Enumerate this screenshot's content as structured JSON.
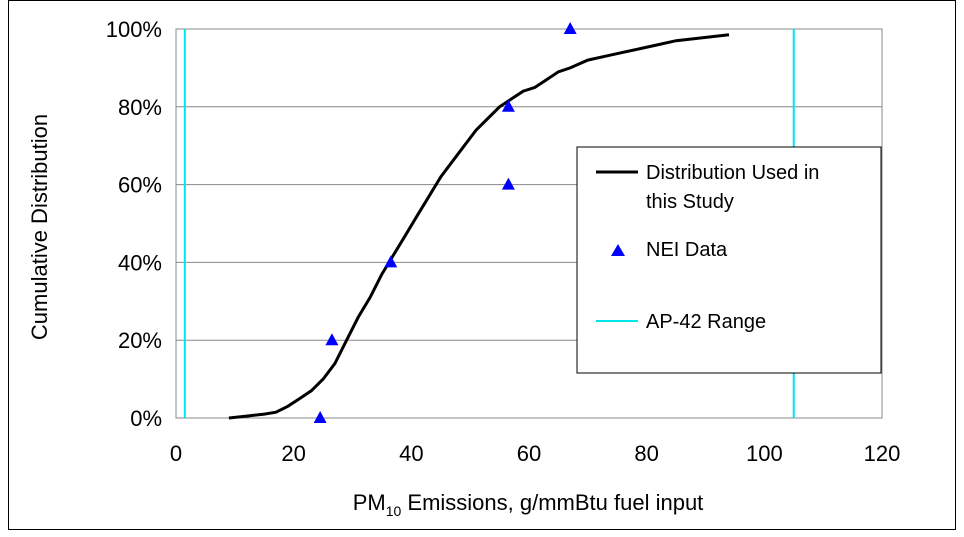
{
  "chart_data": {
    "type": "line",
    "xlabel_main": "PM",
    "xlabel_sub": "10",
    "xlabel_rest": " Emissions, g/mmBtu fuel input",
    "ylabel": "Cumulative Distribution",
    "xlim": [
      0,
      120
    ],
    "ylim": [
      0,
      1
    ],
    "x_ticks": [
      "0",
      "20",
      "40",
      "60",
      "80",
      "100",
      "120"
    ],
    "y_ticks": [
      "0%",
      "20%",
      "40%",
      "60%",
      "80%",
      "100%"
    ],
    "grid": "horizontal",
    "legend_position": "right",
    "colors": {
      "distribution": "#000000",
      "nei": "#0000ff",
      "ap42": "#00e5ee"
    },
    "series": [
      {
        "name_line1": "Distribution Used in",
        "name_line2": "this Study",
        "kind": "line",
        "x": [
          9,
          12,
          15,
          17,
          19,
          21,
          23,
          25,
          27,
          29,
          31,
          33,
          35,
          37,
          39,
          41,
          43,
          45,
          47,
          49,
          51,
          53,
          55,
          57,
          59,
          61,
          63,
          65,
          67,
          70,
          73,
          76,
          79,
          82,
          85,
          88,
          91,
          94
        ],
        "y": [
          0.0,
          0.005,
          0.01,
          0.015,
          0.03,
          0.05,
          0.07,
          0.1,
          0.14,
          0.2,
          0.26,
          0.31,
          0.37,
          0.42,
          0.47,
          0.52,
          0.57,
          0.62,
          0.66,
          0.7,
          0.74,
          0.77,
          0.8,
          0.82,
          0.84,
          0.85,
          0.87,
          0.89,
          0.9,
          0.92,
          0.93,
          0.94,
          0.95,
          0.96,
          0.97,
          0.975,
          0.98,
          0.985
        ]
      },
      {
        "name": "NEI Data",
        "kind": "scatter",
        "x": [
          24.5,
          26.5,
          36.5,
          56.5,
          56.5,
          67
        ],
        "y": [
          0.0,
          0.2,
          0.4,
          0.6,
          0.8,
          1.0
        ]
      },
      {
        "name": "AP-42 Range",
        "kind": "vlines",
        "x": [
          1.5,
          105
        ]
      }
    ]
  }
}
